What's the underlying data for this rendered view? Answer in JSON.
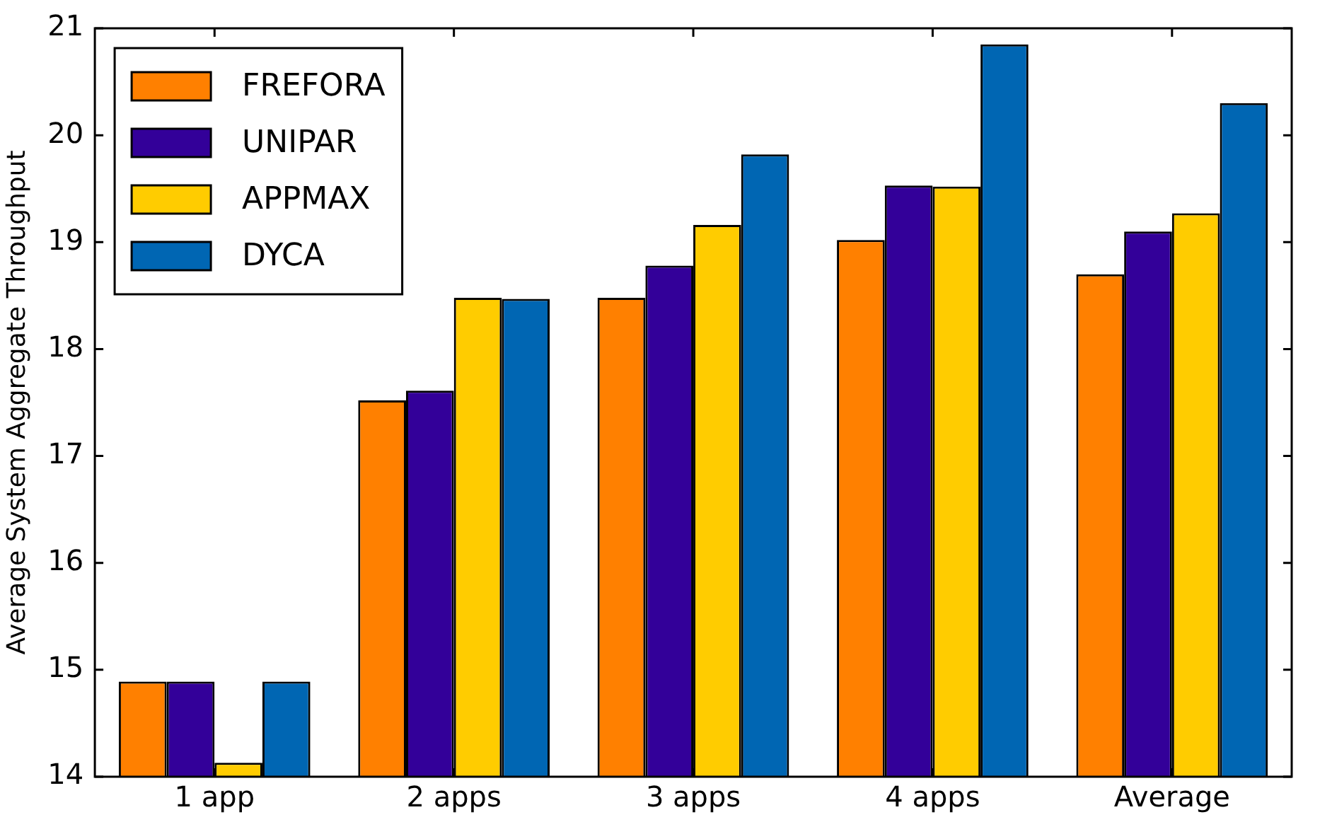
{
  "chart_data": {
    "type": "bar",
    "ylabel": "Average System Aggregate Throughput",
    "categories": [
      "1 app",
      "2 apps",
      "3 apps",
      "4 apps",
      "Average"
    ],
    "series": [
      {
        "name": "FREFORA",
        "color": "#ff8000",
        "values": [
          14.89,
          17.52,
          18.48,
          19.02,
          18.7
        ]
      },
      {
        "name": "UNIPAR",
        "color": "#330099",
        "values": [
          14.89,
          17.61,
          18.78,
          19.53,
          19.1
        ]
      },
      {
        "name": "APPMAX",
        "color": "#ffcc00",
        "values": [
          14.13,
          18.48,
          19.16,
          19.52,
          19.27
        ]
      },
      {
        "name": "DYCA",
        "color": "#0066b3",
        "values": [
          14.89,
          18.47,
          19.82,
          20.85,
          20.3
        ]
      }
    ],
    "ylim": [
      14,
      21
    ],
    "yticks": [
      14,
      15,
      16,
      17,
      18,
      19,
      20,
      21
    ],
    "grid": false,
    "legend": "top left"
  }
}
